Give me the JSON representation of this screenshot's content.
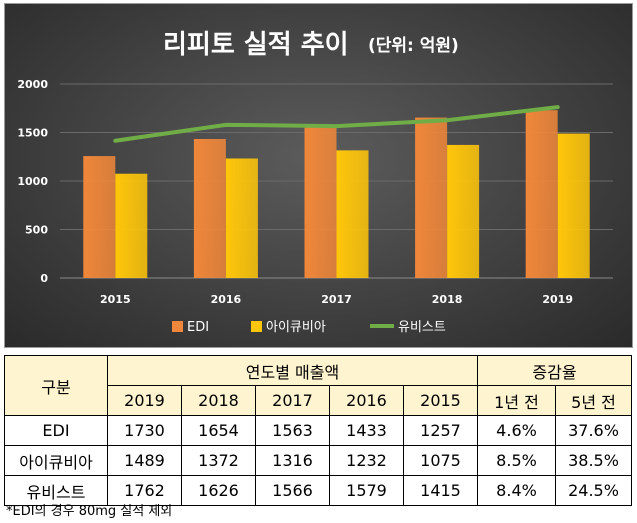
{
  "chart_data": {
    "type": "bar",
    "title": "리피토 실적 추이",
    "title_unit": "(단위: 억원)",
    "categories": [
      "2015",
      "2016",
      "2017",
      "2018",
      "2019"
    ],
    "series": [
      {
        "name": "EDI",
        "type": "bar",
        "color": "#f0873a",
        "values": [
          1257,
          1433,
          1563,
          1654,
          1730
        ]
      },
      {
        "name": "아이큐비아",
        "type": "bar",
        "color": "#ffc60a",
        "values": [
          1075,
          1232,
          1316,
          1372,
          1489
        ]
      },
      {
        "name": "유비스트",
        "type": "line",
        "color": "#70ad47",
        "values": [
          1415,
          1579,
          1566,
          1626,
          1762
        ]
      }
    ],
    "y_ticks": [
      "0",
      "500",
      "1000",
      "1500",
      "2000"
    ],
    "ylim": [
      0,
      2000
    ],
    "grid": true,
    "legend_position": "bottom"
  },
  "table": {
    "header_group": "구분",
    "sales_group": "연도별 매출액",
    "change_group": "증감율",
    "years": [
      "2019",
      "2018",
      "2017",
      "2016",
      "2015"
    ],
    "change_cols": [
      "1년 전",
      "5년 전"
    ],
    "rows": [
      {
        "label": "EDI",
        "values": [
          "1730",
          "1654",
          "1563",
          "1433",
          "1257"
        ],
        "changes": [
          "4.6%",
          "37.6%"
        ]
      },
      {
        "label": "아이큐비아",
        "values": [
          "1489",
          "1372",
          "1316",
          "1232",
          "1075"
        ],
        "changes": [
          "8.5%",
          "38.5%"
        ]
      },
      {
        "label": "유비스트",
        "values": [
          "1762",
          "1626",
          "1566",
          "1579",
          "1415"
        ],
        "changes": [
          "8.4%",
          "24.5%"
        ]
      }
    ]
  },
  "footnote": "*EDI의 경우 80mg 실적 제외"
}
